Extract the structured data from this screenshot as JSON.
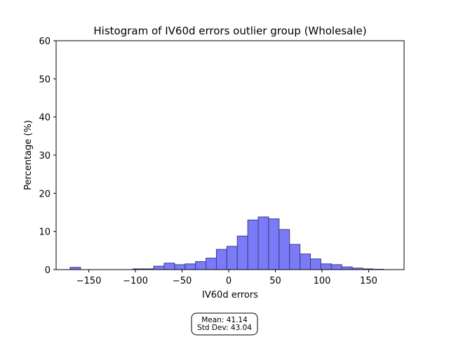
{
  "chart_data": {
    "type": "bar",
    "title": "Histogram of IV60d errors outlier group (Wholesale)",
    "xlabel": "IV60d errors",
    "ylabel": "Percentage (%)",
    "xlim": [
      -185,
      188
    ],
    "ylim": [
      0,
      60
    ],
    "xticks": [
      -150,
      -100,
      -50,
      0,
      50,
      100,
      150
    ],
    "yticks": [
      0,
      10,
      20,
      30,
      40,
      50,
      60
    ],
    "xtick_labels": [
      "−150",
      "−100",
      "−50",
      "0",
      "50",
      "100",
      "150"
    ],
    "ytick_labels": [
      "0",
      "10",
      "20",
      "30",
      "40",
      "50",
      "60"
    ],
    "bin_width": 11.2,
    "bins": [
      {
        "start": -170.0,
        "value": 0.6
      },
      {
        "start": -158.8,
        "value": 0.0
      },
      {
        "start": -147.6,
        "value": 0.0
      },
      {
        "start": -136.4,
        "value": 0.0
      },
      {
        "start": -125.2,
        "value": 0.0
      },
      {
        "start": -114.0,
        "value": 0.0
      },
      {
        "start": -102.8,
        "value": 0.2
      },
      {
        "start": -91.6,
        "value": 0.2
      },
      {
        "start": -80.4,
        "value": 0.9
      },
      {
        "start": -69.2,
        "value": 1.7
      },
      {
        "start": -58.0,
        "value": 1.3
      },
      {
        "start": -46.8,
        "value": 1.5
      },
      {
        "start": -35.6,
        "value": 2.1
      },
      {
        "start": -24.4,
        "value": 3.0
      },
      {
        "start": -13.2,
        "value": 5.3
      },
      {
        "start": -2.0,
        "value": 6.1
      },
      {
        "start": 9.2,
        "value": 8.8
      },
      {
        "start": 20.4,
        "value": 13.0
      },
      {
        "start": 31.6,
        "value": 13.8
      },
      {
        "start": 42.8,
        "value": 13.3
      },
      {
        "start": 54.0,
        "value": 10.5
      },
      {
        "start": 65.2,
        "value": 6.6
      },
      {
        "start": 76.4,
        "value": 4.1
      },
      {
        "start": 87.6,
        "value": 2.8
      },
      {
        "start": 98.8,
        "value": 1.5
      },
      {
        "start": 110.0,
        "value": 1.3
      },
      {
        "start": 121.2,
        "value": 0.7
      },
      {
        "start": 132.4,
        "value": 0.4
      },
      {
        "start": 143.6,
        "value": 0.2
      },
      {
        "start": 154.8,
        "value": 0.1
      }
    ],
    "colors": {
      "bar_fill": "#7b7bf7",
      "bar_edge": "#3a3a8c",
      "axes": "#000000"
    },
    "grid": false,
    "legend": "none"
  },
  "stats": {
    "mean_label": "Mean: 41.14",
    "std_label": "Std Dev: 43.04"
  }
}
